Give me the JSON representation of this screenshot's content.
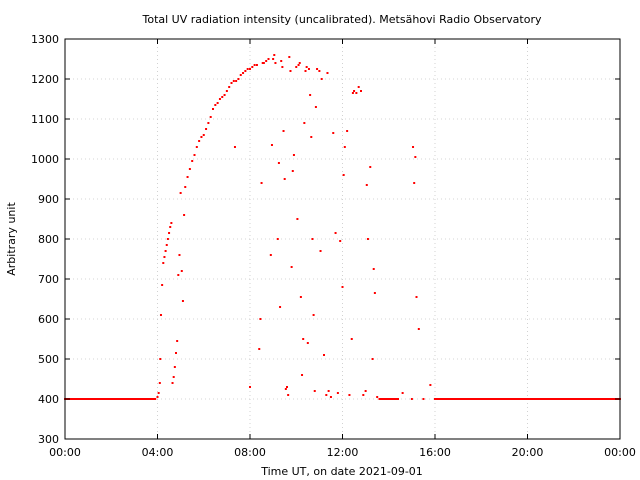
{
  "chart_data": {
    "type": "scatter",
    "title": "Total UV radiation intensity (uncalibrated). Metsähovi Radio Observatory",
    "xlabel": "Time UT, on date 2021-09-01",
    "ylabel": "Arbitrary unit",
    "xlim": [
      0,
      24
    ],
    "ylim": [
      300,
      1300
    ],
    "x_unit": "hours UT",
    "grid": true,
    "marker_color": "#ff0000",
    "x_ticks": [
      {
        "value": 0,
        "label": "00:00"
      },
      {
        "value": 4,
        "label": "04:00"
      },
      {
        "value": 8,
        "label": "08:00"
      },
      {
        "value": 12,
        "label": "12:00"
      },
      {
        "value": 16,
        "label": "16:00"
      },
      {
        "value": 20,
        "label": "20:00"
      },
      {
        "value": 24,
        "label": "00:00"
      }
    ],
    "y_ticks": [
      300,
      400,
      500,
      600,
      700,
      800,
      900,
      1000,
      1100,
      1200,
      1300
    ],
    "series": [
      {
        "values": [
          [
            0.0,
            400
          ],
          [
            0.5,
            400
          ],
          [
            1.0,
            400
          ],
          [
            1.5,
            400
          ],
          [
            2.0,
            400
          ],
          [
            2.5,
            400
          ],
          [
            3.0,
            400
          ],
          [
            3.5,
            400
          ],
          [
            3.9,
            400
          ],
          [
            4.0,
            405
          ],
          [
            4.05,
            415
          ],
          [
            4.1,
            440
          ],
          [
            4.12,
            500
          ],
          [
            4.15,
            610
          ],
          [
            4.2,
            685
          ],
          [
            4.25,
            740
          ],
          [
            4.3,
            755
          ],
          [
            4.35,
            770
          ],
          [
            4.4,
            785
          ],
          [
            4.45,
            800
          ],
          [
            4.5,
            815
          ],
          [
            4.55,
            830
          ],
          [
            4.6,
            840
          ],
          [
            4.65,
            440
          ],
          [
            4.7,
            455
          ],
          [
            4.75,
            480
          ],
          [
            4.8,
            515
          ],
          [
            4.85,
            545
          ],
          [
            4.9,
            710
          ],
          [
            4.95,
            760
          ],
          [
            5.0,
            915
          ],
          [
            5.05,
            720
          ],
          [
            5.1,
            645
          ],
          [
            5.15,
            860
          ],
          [
            5.2,
            930
          ],
          [
            5.3,
            955
          ],
          [
            5.4,
            975
          ],
          [
            5.5,
            995
          ],
          [
            5.6,
            1010
          ],
          [
            5.7,
            1030
          ],
          [
            5.8,
            1045
          ],
          [
            5.9,
            1055
          ],
          [
            6.0,
            1060
          ],
          [
            6.1,
            1075
          ],
          [
            6.2,
            1090
          ],
          [
            6.3,
            1105
          ],
          [
            6.4,
            1125
          ],
          [
            6.5,
            1135
          ],
          [
            6.6,
            1140
          ],
          [
            6.7,
            1150
          ],
          [
            6.8,
            1155
          ],
          [
            6.9,
            1160
          ],
          [
            7.0,
            1170
          ],
          [
            7.1,
            1180
          ],
          [
            7.2,
            1190
          ],
          [
            7.3,
            1195
          ],
          [
            7.35,
            1030
          ],
          [
            7.4,
            1195
          ],
          [
            7.5,
            1200
          ],
          [
            7.6,
            1210
          ],
          [
            7.7,
            1215
          ],
          [
            7.8,
            1220
          ],
          [
            7.9,
            1225
          ],
          [
            8.0,
            1225
          ],
          [
            8.0,
            430
          ],
          [
            8.1,
            1230
          ],
          [
            8.2,
            1235
          ],
          [
            8.3,
            1235
          ],
          [
            8.4,
            525
          ],
          [
            8.45,
            600
          ],
          [
            8.5,
            940
          ],
          [
            8.55,
            1240
          ],
          [
            8.6,
            1240
          ],
          [
            8.7,
            1245
          ],
          [
            8.8,
            1250
          ],
          [
            8.9,
            760
          ],
          [
            8.95,
            1035
          ],
          [
            9.0,
            1250
          ],
          [
            9.05,
            1260
          ],
          [
            9.1,
            1240
          ],
          [
            9.2,
            800
          ],
          [
            9.25,
            990
          ],
          [
            9.3,
            630
          ],
          [
            9.35,
            1245
          ],
          [
            9.4,
            1230
          ],
          [
            9.45,
            1070
          ],
          [
            9.5,
            950
          ],
          [
            9.55,
            425
          ],
          [
            9.6,
            430
          ],
          [
            9.65,
            410
          ],
          [
            9.7,
            1255
          ],
          [
            9.75,
            1220
          ],
          [
            9.8,
            730
          ],
          [
            9.85,
            970
          ],
          [
            9.9,
            1010
          ],
          [
            10.0,
            1230
          ],
          [
            10.05,
            850
          ],
          [
            10.1,
            1235
          ],
          [
            10.15,
            1240
          ],
          [
            10.2,
            655
          ],
          [
            10.25,
            460
          ],
          [
            10.3,
            550
          ],
          [
            10.35,
            1090
          ],
          [
            10.4,
            1220
          ],
          [
            10.45,
            1230
          ],
          [
            10.5,
            540
          ],
          [
            10.55,
            1225
          ],
          [
            10.6,
            1160
          ],
          [
            10.65,
            1055
          ],
          [
            10.7,
            800
          ],
          [
            10.75,
            610
          ],
          [
            10.8,
            420
          ],
          [
            10.85,
            1130
          ],
          [
            10.9,
            1225
          ],
          [
            11.0,
            1220
          ],
          [
            11.05,
            770
          ],
          [
            11.1,
            1200
          ],
          [
            11.2,
            510
          ],
          [
            11.3,
            410
          ],
          [
            11.35,
            1215
          ],
          [
            11.4,
            420
          ],
          [
            11.5,
            405
          ],
          [
            11.6,
            1065
          ],
          [
            11.7,
            815
          ],
          [
            11.8,
            415
          ],
          [
            11.9,
            795
          ],
          [
            12.0,
            680
          ],
          [
            12.05,
            960
          ],
          [
            12.1,
            1030
          ],
          [
            12.2,
            1070
          ],
          [
            12.3,
            410
          ],
          [
            12.4,
            550
          ],
          [
            12.45,
            1165
          ],
          [
            12.5,
            1170
          ],
          [
            12.6,
            1165
          ],
          [
            12.7,
            1180
          ],
          [
            12.8,
            1170
          ],
          [
            12.9,
            410
          ],
          [
            13.0,
            420
          ],
          [
            13.05,
            935
          ],
          [
            13.1,
            800
          ],
          [
            13.2,
            980
          ],
          [
            13.3,
            500
          ],
          [
            13.35,
            725
          ],
          [
            13.4,
            665
          ],
          [
            13.5,
            405
          ],
          [
            13.6,
            400
          ],
          [
            14.0,
            400
          ],
          [
            14.4,
            400
          ],
          [
            14.6,
            415
          ],
          [
            15.0,
            400
          ],
          [
            15.05,
            1030
          ],
          [
            15.1,
            940
          ],
          [
            15.15,
            1005
          ],
          [
            15.2,
            655
          ],
          [
            15.3,
            575
          ],
          [
            15.5,
            400
          ],
          [
            15.8,
            435
          ],
          [
            16.0,
            400
          ],
          [
            16.5,
            400
          ],
          [
            17.0,
            400
          ],
          [
            17.5,
            400
          ],
          [
            18.0,
            400
          ],
          [
            18.5,
            400
          ],
          [
            19.0,
            400
          ],
          [
            19.5,
            400
          ],
          [
            20.0,
            400
          ],
          [
            20.5,
            400
          ],
          [
            21.0,
            400
          ],
          [
            21.5,
            400
          ],
          [
            22.0,
            400
          ],
          [
            22.5,
            400
          ],
          [
            23.0,
            400
          ],
          [
            23.5,
            400
          ],
          [
            24.0,
            400
          ]
        ]
      }
    ]
  }
}
